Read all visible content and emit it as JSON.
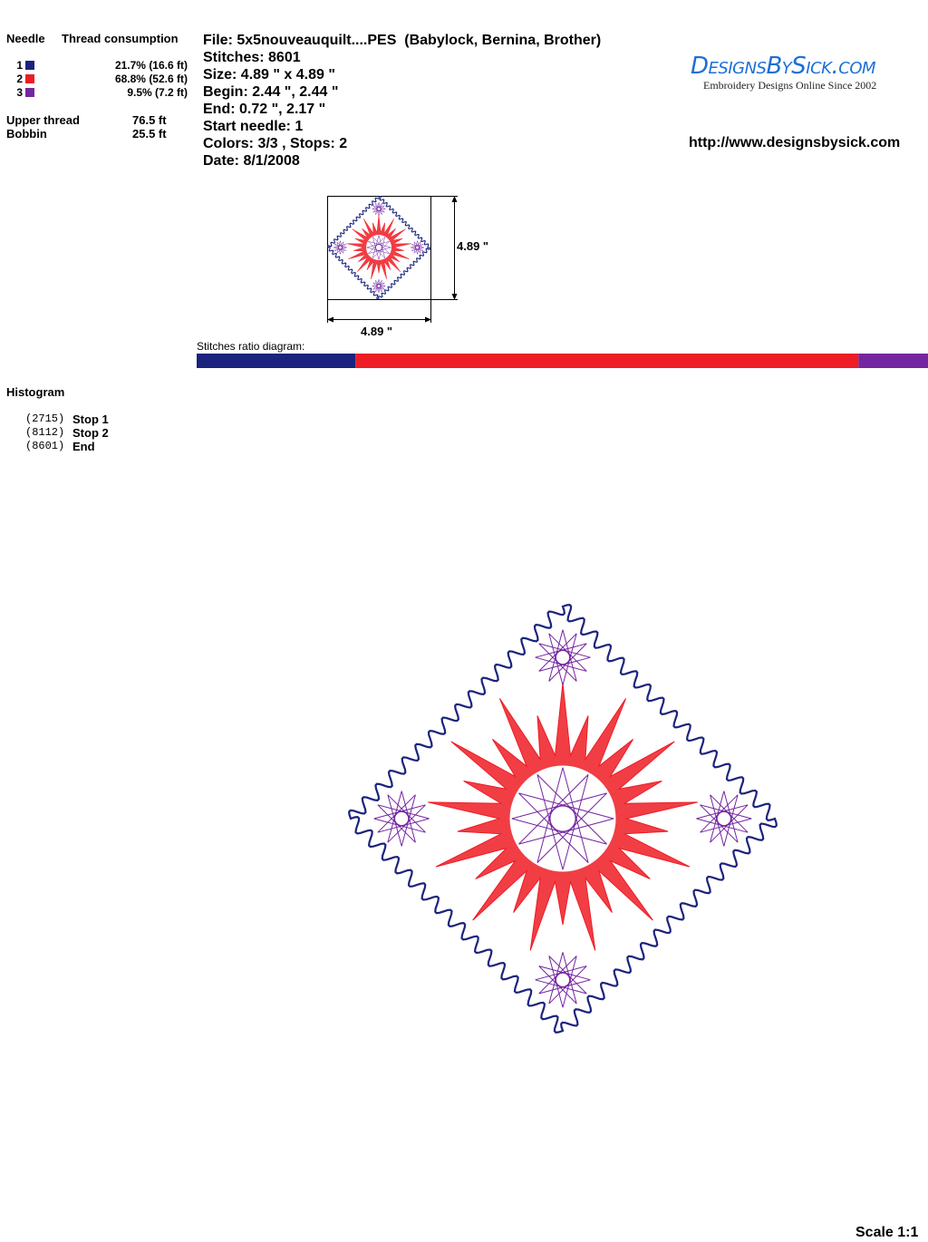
{
  "needles": {
    "header": [
      "Needle",
      "Thread consumption"
    ],
    "rows": [
      {
        "number": "1",
        "color": "#1b237e",
        "consumption": "21.7% (16.6 ft)"
      },
      {
        "number": "2",
        "color": "#ee1c25",
        "consumption": "68.8% (52.6 ft)"
      },
      {
        "number": "3",
        "color": "#7426a0",
        "consumption": "9.5% (7.2 ft)"
      }
    ]
  },
  "thread_totals": [
    {
      "label": "Upper thread",
      "value": "76.5 ft"
    },
    {
      "label": "Bobbin",
      "value": "25.5 ft"
    }
  ],
  "file_info": [
    "File: 5x5nouveauquilt....PES  (Babylock, Bernina, Brother)",
    "Stitches: 8601",
    "Size: 4.89 \" x 4.89 \"",
    "Begin: 2.44 \", 2.44 \"",
    "End: 0.72 \", 2.17 \"",
    "Start needle: 1",
    "Colors: 3/3 , Stops: 2",
    "Date: 8/1/2008"
  ],
  "logo": {
    "name": "DesignsBySick.com",
    "tagline": "Embroidery Designs Online Since 2002"
  },
  "url": "http://www.designsbysick.com",
  "thumbnail": {
    "width_label": "4.89 \"",
    "height_label": "4.89 \""
  },
  "ratio_diagram": {
    "label": "Stitches ratio diagram:"
  },
  "histogram": {
    "title": "Histogram",
    "entries": [
      {
        "count": "(2715)",
        "label": "Stop 1"
      },
      {
        "count": "(8112)",
        "label": "Stop 2"
      },
      {
        "count": "(8601)",
        "label": "End"
      }
    ]
  },
  "scale": "Scale 1:1"
}
